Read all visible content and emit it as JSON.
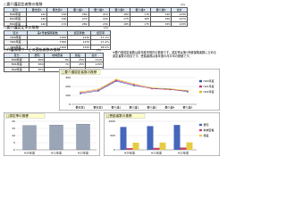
{
  "sections": [
    {
      "title": "○要介護認定者数の推移",
      "unit": "(人)",
      "header": [
        "区分",
        "要支援1",
        "要支援2",
        "要介護1",
        "要介護2",
        "要介護3",
        "要介護4",
        "要介護5",
        "合計"
      ],
      "rows": [
        [
          "H20年度",
          120,
          150,
          260,
          210,
          180,
          170,
          140,
          1230
        ],
        [
          "H21年度",
          130,
          160,
          270,
          220,
          175,
          165,
          150,
          1270
        ],
        [
          "H22年度",
          140,
          170,
          280,
          230,
          185,
          175,
          155,
          1335
        ]
      ]
    },
    {
      "title": "○要介護認定率の推移",
      "unit": "(人)",
      "header": [
        "区分",
        "第1号被保険者数",
        "認定者数",
        "認定率"
      ],
      "rows": [
        [
          "H20年度",
          7200,
          1230,
          "17.1%"
        ],
        [
          "H21年度",
          7300,
          1270,
          "17.4%"
        ],
        [
          "H22年度",
          7400,
          1335,
          "18.0%"
        ]
      ]
    },
    {
      "title": "○介護保険サービス受給者数の推移",
      "unit": "(人)",
      "header": [
        "区分",
        "居宅",
        "地域密着",
        "施設",
        "合計"
      ],
      "rows": [
        [
          "H20年度",
          800,
          60,
          250,
          1110
        ],
        [
          "H21年度",
          830,
          70,
          255,
          1155
        ],
        [
          "H22年度",
          870,
          80,
          260,
          1210
        ]
      ]
    }
  ],
  "note": "※要介護認定者数は各年度末現在の数値です。認定率は第1号被保険者数に占める認定者数の割合です。受給者数は各年度の月平均の数値です。",
  "charts": [
    {
      "type": "line",
      "title": "□要介護認定者数の推移",
      "categories": [
        "要支援1",
        "要支援2",
        "要介護1",
        "要介護2",
        "要介護3",
        "要介護4",
        "要介護5"
      ],
      "series": [
        {
          "name": "H20年度",
          "color": "#3355aa",
          "values": [
            120,
            150,
            260,
            210,
            180,
            170,
            140
          ]
        },
        {
          "name": "H21年度",
          "color": "#cc3377",
          "values": [
            130,
            160,
            270,
            220,
            175,
            165,
            150
          ]
        },
        {
          "name": "H22年度",
          "color": "#ddbb22",
          "values": [
            140,
            170,
            280,
            230,
            185,
            175,
            155
          ]
        }
      ],
      "ylim": [
        0,
        300
      ],
      "yticks": [
        0,
        100,
        200,
        300
      ]
    },
    {
      "type": "bar",
      "title": "□認定率の推移",
      "categories": [
        "H20年度",
        "H21年度",
        "H22年度"
      ],
      "values": [
        17.1,
        17.4,
        18.0
      ],
      "color": "#9aa6b8",
      "ylim": [
        0,
        20
      ],
      "yticks": [
        0,
        5,
        10,
        15,
        20
      ]
    },
    {
      "type": "bar",
      "title": "□受給者数の推移",
      "categories": [
        "H20年度",
        "H21年度",
        "H22年度"
      ],
      "series": [
        {
          "name": "居宅",
          "color": "#4466bb",
          "values": [
            800,
            830,
            870
          ]
        },
        {
          "name": "地域密着",
          "color": "#cc4466",
          "values": [
            60,
            70,
            80
          ]
        },
        {
          "name": "施設",
          "color": "#e6cc44",
          "values": [
            250,
            255,
            260
          ]
        }
      ],
      "ylim": [
        0,
        1000
      ],
      "yticks": [
        0,
        500,
        1000
      ]
    }
  ]
}
